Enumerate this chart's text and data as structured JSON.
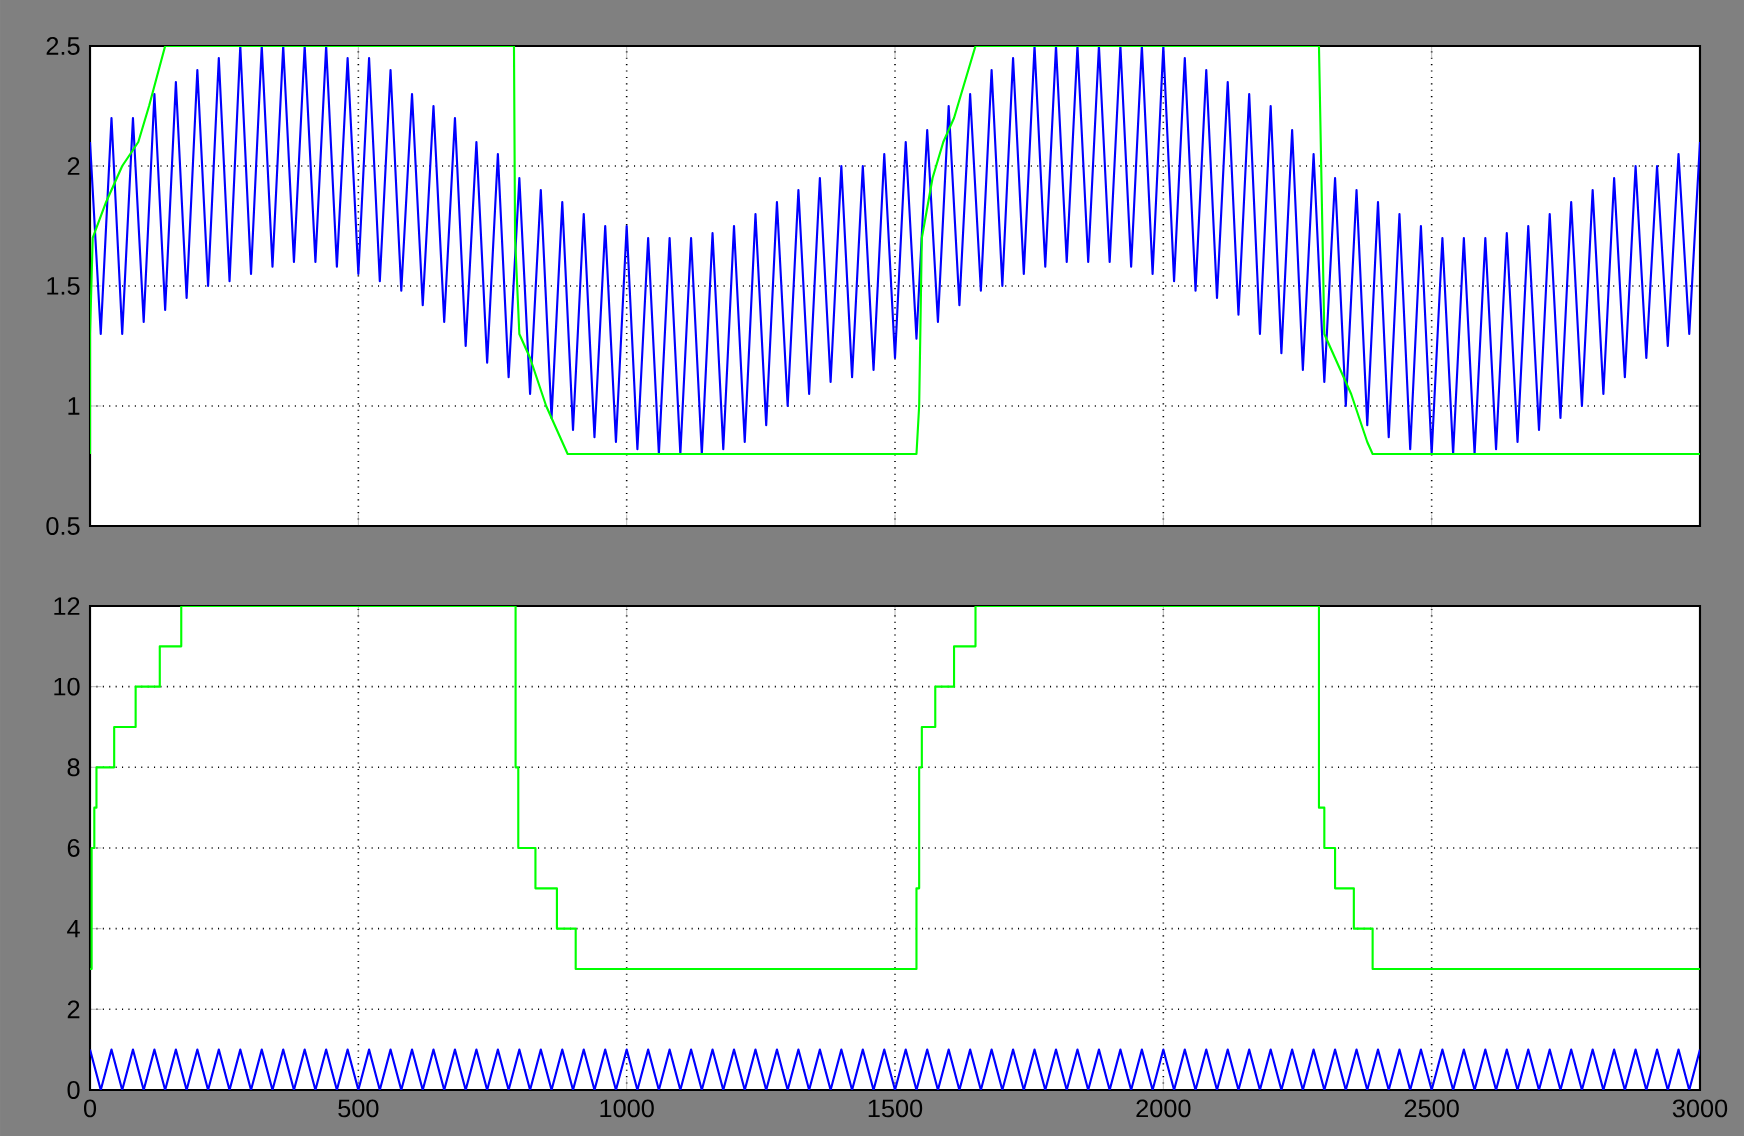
{
  "chart_data": [
    {
      "type": "line",
      "xlim": [
        0,
        3000
      ],
      "xticks": [
        0,
        500,
        1000,
        1500,
        2000,
        2500,
        3000
      ],
      "ylim": [
        0.5,
        2.5
      ],
      "yticks": [
        0.5,
        1,
        1.5,
        2,
        2.5
      ],
      "grid": true,
      "tick_labels": "y",
      "x": [
        0,
        20,
        40,
        60,
        80,
        100,
        120,
        140,
        160,
        180,
        200,
        220,
        240,
        260,
        280,
        300,
        320,
        340,
        360,
        380,
        400,
        420,
        440,
        460,
        480,
        500,
        520,
        540,
        560,
        580,
        600,
        620,
        640,
        660,
        680,
        700,
        720,
        740,
        760,
        780,
        800,
        820,
        840,
        860,
        880,
        900,
        920,
        940,
        960,
        980,
        1000,
        1020,
        1040,
        1060,
        1080,
        1100,
        1120,
        1140,
        1160,
        1180,
        1200,
        1220,
        1240,
        1260,
        1280,
        1300,
        1320,
        1340,
        1360,
        1380,
        1400,
        1420,
        1440,
        1460,
        1480,
        1500,
        1520,
        1540,
        1560,
        1580,
        1600,
        1620,
        1640,
        1660,
        1680,
        1700,
        1720,
        1740,
        1760,
        1780,
        1800,
        1820,
        1840,
        1860,
        1880,
        1900,
        1920,
        1940,
        1960,
        1980,
        2000,
        2020,
        2040,
        2060,
        2080,
        2100,
        2120,
        2140,
        2160,
        2180,
        2200,
        2220,
        2240,
        2260,
        2280,
        2300,
        2320,
        2340,
        2360,
        2380,
        2400,
        2420,
        2440,
        2460,
        2480,
        2500,
        2520,
        2540,
        2560,
        2580,
        2600,
        2620,
        2640,
        2660,
        2680,
        2700,
        2720,
        2740,
        2760,
        2780,
        2800,
        2820,
        2840,
        2860,
        2880,
        2900,
        2920,
        2940,
        2960,
        2980,
        3000
      ],
      "series": [
        {
          "color": "#0000ff",
          "values": [
            2.1,
            1.3,
            2.2,
            1.3,
            2.2,
            1.35,
            2.3,
            1.4,
            2.35,
            1.45,
            2.4,
            1.5,
            2.45,
            1.52,
            2.5,
            1.55,
            2.5,
            1.58,
            2.5,
            1.6,
            2.5,
            1.6,
            2.5,
            1.58,
            2.45,
            1.55,
            2.45,
            1.52,
            2.4,
            1.48,
            2.3,
            1.42,
            2.25,
            1.35,
            2.2,
            1.25,
            2.1,
            1.18,
            2.05,
            1.12,
            1.95,
            1.05,
            1.9,
            0.95,
            1.85,
            0.9,
            1.8,
            0.87,
            1.75,
            0.85,
            1.75,
            0.82,
            1.7,
            0.8,
            1.7,
            0.8,
            1.7,
            0.8,
            1.72,
            0.82,
            1.75,
            0.85,
            1.8,
            0.92,
            1.85,
            1.0,
            1.9,
            1.05,
            1.95,
            1.1,
            2.0,
            1.12,
            2.0,
            1.15,
            2.05,
            1.2,
            2.1,
            1.28,
            2.15,
            1.35,
            2.25,
            1.42,
            2.3,
            1.48,
            2.4,
            1.5,
            2.45,
            1.55,
            2.5,
            1.58,
            2.5,
            1.6,
            2.5,
            1.6,
            2.5,
            1.6,
            2.5,
            1.58,
            2.5,
            1.55,
            2.5,
            1.52,
            2.45,
            1.48,
            2.4,
            1.45,
            2.35,
            1.38,
            2.3,
            1.3,
            2.25,
            1.22,
            2.15,
            1.15,
            2.05,
            1.1,
            1.95,
            1.0,
            1.9,
            0.92,
            1.85,
            0.87,
            1.8,
            0.82,
            1.75,
            0.8,
            1.7,
            0.8,
            1.7,
            0.8,
            1.7,
            0.82,
            1.72,
            0.85,
            1.75,
            0.9,
            1.8,
            0.95,
            1.85,
            1.0,
            1.9,
            1.05,
            1.95,
            1.12,
            2.0,
            1.2,
            2.0,
            1.25,
            2.05,
            1.3,
            2.1
          ]
        },
        {
          "color": "#00ff00",
          "x": [
            0,
            0,
            5,
            30,
            60,
            90,
            110,
            140,
            790,
            792,
            800,
            820,
            850,
            880,
            890,
            1540,
            1545,
            1550,
            1570,
            1590,
            1610,
            1650,
            2290,
            2300,
            2320,
            2350,
            2380,
            2390,
            3000
          ],
          "values": [
            0.8,
            1.3,
            1.7,
            1.85,
            2.0,
            2.1,
            2.25,
            2.5,
            2.5,
            1.7,
            1.3,
            1.2,
            1.0,
            0.85,
            0.8,
            0.8,
            1.0,
            1.7,
            1.95,
            2.1,
            2.2,
            2.5,
            2.5,
            1.3,
            1.2,
            1.05,
            0.85,
            0.8,
            0.8
          ]
        }
      ]
    },
    {
      "type": "line",
      "xlim": [
        0,
        3000
      ],
      "xticks": [
        0,
        500,
        1000,
        1500,
        2000,
        2500,
        3000
      ],
      "ylim": [
        0,
        12
      ],
      "yticks": [
        0,
        2,
        4,
        6,
        8,
        10,
        12
      ],
      "grid": true,
      "x": [
        0,
        20,
        40,
        60,
        80,
        100,
        120,
        140,
        160,
        180,
        200,
        220,
        240,
        260,
        280,
        300,
        320,
        340,
        360,
        380,
        400,
        420,
        440,
        460,
        480,
        500,
        520,
        540,
        560,
        580,
        600,
        620,
        640,
        660,
        680,
        700,
        720,
        740,
        760,
        780,
        800,
        820,
        840,
        860,
        880,
        900,
        920,
        940,
        960,
        980,
        1000,
        1020,
        1040,
        1060,
        1080,
        1100,
        1120,
        1140,
        1160,
        1180,
        1200,
        1220,
        1240,
        1260,
        1280,
        1300,
        1320,
        1340,
        1360,
        1380,
        1400,
        1420,
        1440,
        1460,
        1480,
        1500,
        1520,
        1540,
        1560,
        1580,
        1600,
        1620,
        1640,
        1660,
        1680,
        1700,
        1720,
        1740,
        1760,
        1780,
        1800,
        1820,
        1840,
        1860,
        1880,
        1900,
        1920,
        1940,
        1960,
        1980,
        2000,
        2020,
        2040,
        2060,
        2080,
        2100,
        2120,
        2140,
        2160,
        2180,
        2200,
        2220,
        2240,
        2260,
        2280,
        2300,
        2320,
        2340,
        2360,
        2380,
        2400,
        2420,
        2440,
        2460,
        2480,
        2500,
        2520,
        2540,
        2560,
        2580,
        2600,
        2620,
        2640,
        2660,
        2680,
        2700,
        2720,
        2740,
        2760,
        2780,
        2800,
        2820,
        2840,
        2860,
        2880,
        2900,
        2920,
        2940,
        2960,
        2980,
        3000
      ],
      "series": [
        {
          "color": "#0000ff",
          "values": [
            1,
            0,
            1,
            0,
            1,
            0,
            1,
            0,
            1,
            0,
            1,
            0,
            1,
            0,
            1,
            0,
            1,
            0,
            1,
            0,
            1,
            0,
            1,
            0,
            1,
            0,
            1,
            0,
            1,
            0,
            1,
            0,
            1,
            0,
            1,
            0,
            1,
            0,
            1,
            0,
            1,
            0,
            1,
            0,
            1,
            0,
            1,
            0,
            1,
            0,
            1,
            0,
            1,
            0,
            1,
            0,
            1,
            0,
            1,
            0,
            1,
            0,
            1,
            0,
            1,
            0,
            1,
            0,
            1,
            0,
            1,
            0,
            1,
            0,
            1,
            0,
            1,
            0,
            1,
            0,
            1,
            0,
            1,
            0,
            1,
            0,
            1,
            0,
            1,
            0,
            1,
            0,
            1,
            0,
            1,
            0,
            1,
            0,
            1,
            0,
            1,
            0,
            1,
            0,
            1,
            0,
            1,
            0,
            1,
            0,
            1,
            0,
            1,
            0,
            1,
            0,
            1,
            0,
            1,
            0,
            1,
            0,
            1,
            0,
            1,
            0,
            1,
            0,
            1,
            0,
            1,
            0,
            1,
            0,
            1,
            0,
            1,
            0,
            1,
            0,
            1,
            0,
            1,
            0,
            1,
            0,
            1,
            0,
            1,
            0,
            1
          ]
        },
        {
          "type": "step",
          "color": "#00ff00",
          "x": [
            0,
            3,
            8,
            12,
            45,
            85,
            130,
            170,
            793,
            798,
            830,
            870,
            905,
            1540,
            1545,
            1550,
            1575,
            1610,
            1650,
            2290,
            2300,
            2320,
            2355,
            2390,
            3000
          ],
          "values": [
            3,
            6,
            7,
            8,
            9,
            10,
            11,
            12,
            8,
            6,
            5,
            4,
            3,
            5,
            8,
            9,
            10,
            11,
            12,
            7,
            6,
            5,
            4,
            3,
            3
          ]
        }
      ]
    }
  ]
}
